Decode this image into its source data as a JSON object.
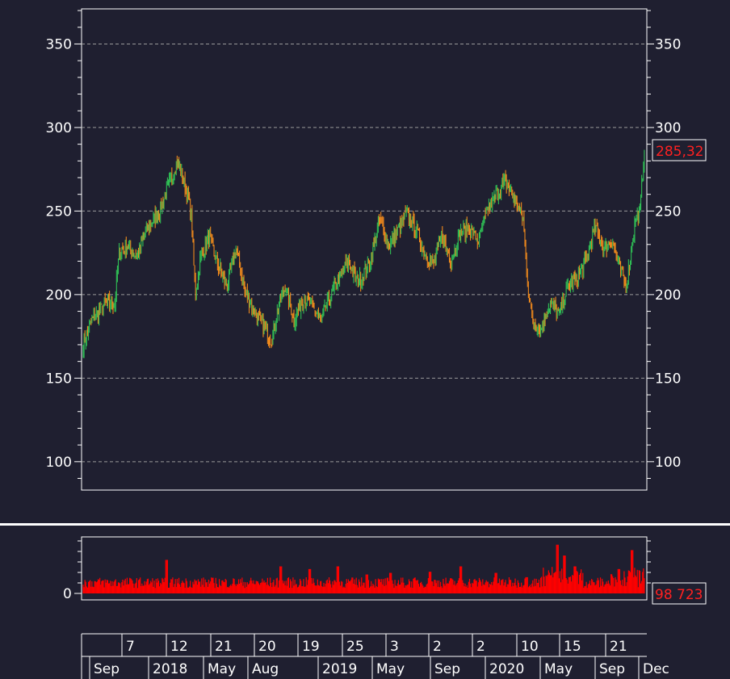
{
  "chart_data": [
    {
      "type": "candlestick",
      "y_ticks": [
        "350",
        "300",
        "250",
        "200",
        "150",
        "100"
      ],
      "y_tick_values": [
        350,
        300,
        250,
        200,
        150,
        100
      ],
      "ylim": [
        83,
        371
      ],
      "grid": "horizontal dashed",
      "last_price_label": "285,32",
      "last_price": 285.32,
      "up_color": "#2fbf55",
      "down_color": "#f08a1c",
      "path": [
        [
          0,
          170
        ],
        [
          2,
          185
        ],
        [
          5,
          195
        ],
        [
          7,
          194
        ],
        [
          8,
          225
        ],
        [
          10,
          230
        ],
        [
          12,
          222
        ],
        [
          14,
          238
        ],
        [
          17,
          250
        ],
        [
          19,
          265
        ],
        [
          21,
          280
        ],
        [
          23,
          262
        ],
        [
          24,
          250
        ],
        [
          25,
          200
        ],
        [
          26,
          220
        ],
        [
          28,
          235
        ],
        [
          30,
          218
        ],
        [
          32,
          205
        ],
        [
          34,
          228
        ],
        [
          36,
          202
        ],
        [
          38,
          190
        ],
        [
          40,
          182
        ],
        [
          42,
          172
        ],
        [
          43,
          188
        ],
        [
          45,
          205
        ],
        [
          47,
          185
        ],
        [
          49,
          198
        ],
        [
          51,
          193
        ],
        [
          53,
          185
        ],
        [
          55,
          198
        ],
        [
          57,
          210
        ],
        [
          59,
          220
        ],
        [
          61,
          208
        ],
        [
          62,
          210
        ],
        [
          64,
          220
        ],
        [
          66,
          245
        ],
        [
          68,
          230
        ],
        [
          70,
          238
        ],
        [
          72,
          248
        ],
        [
          74,
          240
        ],
        [
          76,
          225
        ],
        [
          78,
          218
        ],
        [
          80,
          235
        ],
        [
          82,
          220
        ],
        [
          84,
          237
        ],
        [
          86,
          240
        ],
        [
          88,
          232
        ],
        [
          90,
          250
        ],
        [
          92,
          260
        ],
        [
          94,
          268
        ],
        [
          96,
          258
        ],
        [
          98,
          245
        ],
        [
          99,
          208
        ],
        [
          100,
          185
        ],
        [
          102,
          180
        ],
        [
          104,
          195
        ],
        [
          106,
          188
        ],
        [
          108,
          205
        ],
        [
          110,
          210
        ],
        [
          112,
          220
        ],
        [
          114,
          240
        ],
        [
          116,
          228
        ],
        [
          118,
          232
        ],
        [
          119,
          220
        ],
        [
          120,
          212
        ],
        [
          121,
          205
        ],
        [
          122,
          225
        ],
        [
          123,
          245
        ],
        [
          124,
          250
        ],
        [
          125,
          285
        ]
      ]
    },
    {
      "type": "bar",
      "series_name_label": "98 723",
      "last_value": 98723,
      "y_ticks": [
        "0"
      ],
      "color": "#ff0000"
    }
  ],
  "time_axis": {
    "row1": [
      "7",
      "12",
      "21",
      "20",
      "19",
      "25",
      "3",
      "2",
      "2",
      "10",
      "15",
      "21"
    ],
    "row2": [
      "Sep",
      "2018",
      "May",
      "Aug",
      "2019",
      "May",
      "Sep",
      "2020",
      "May",
      "Sep",
      "Dec"
    ]
  },
  "colors": {
    "background": "#1f1f30",
    "grid": "#9a9a9a",
    "frame": "#ffffff"
  }
}
